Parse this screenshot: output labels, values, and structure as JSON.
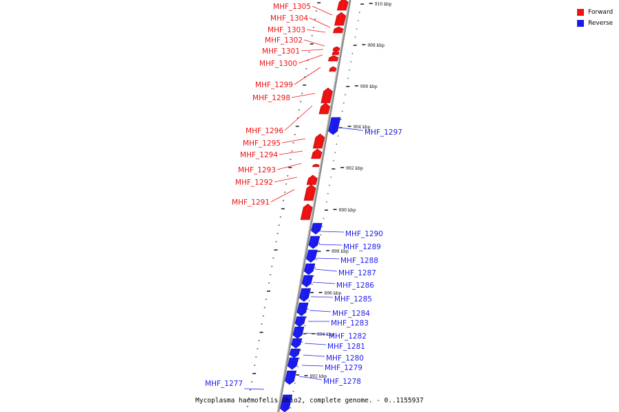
{
  "colors": {
    "forward": "#ee1111",
    "reverse": "#1a1aee",
    "backbone": "#8a8a8a"
  },
  "legend": {
    "forward": "Forward",
    "reverse": "Reverse"
  },
  "title": "Mycoplasma haemofelis Ohio2, complete genome. - 0..1155937",
  "ticks": [
    "910 kbp",
    "908 kbp",
    "906 kbp",
    "904 kbp",
    "902 kbp",
    "900 kbp",
    "898 kbp",
    "896 kbp",
    "894 kbp",
    "892 kbp"
  ],
  "genes_forward": [
    "MHF_1305",
    "MHF_1304",
    "MHF_1303",
    "MHF_1302",
    "MHF_1301",
    "MHF_1300",
    "MHF_1299",
    "MHF_1298",
    "MHF_1296",
    "MHF_1295",
    "MHF_1294",
    "MHF_1293",
    "MHF_1292",
    "MHF_1291"
  ],
  "genes_reverse": [
    "MHF_1297",
    "MHF_1290",
    "MHF_1289",
    "MHF_1288",
    "MHF_1287",
    "MHF_1286",
    "MHF_1285",
    "MHF_1284",
    "MHF_1283",
    "MHF_1282",
    "MHF_1281",
    "MHF_1280",
    "MHF_1279",
    "MHF_1278",
    "MHF_1277"
  ]
}
